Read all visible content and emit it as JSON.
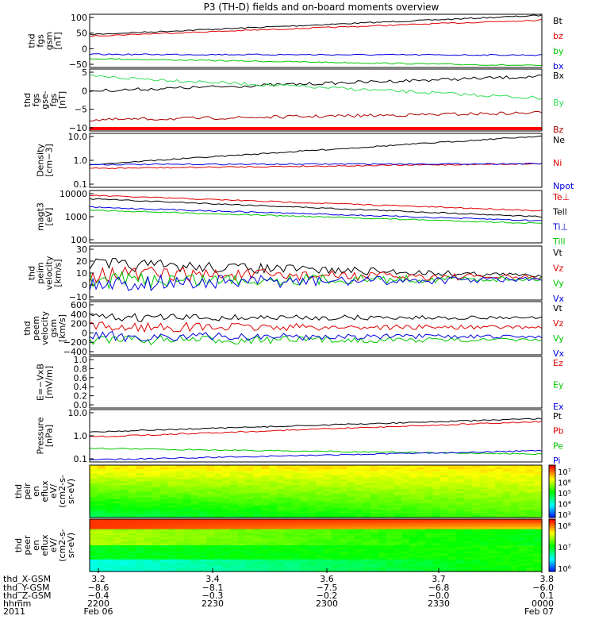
{
  "title": "P3 (TH-D) fields and on-board moments overview",
  "colors": {
    "black": "#000000",
    "red": "#e00000",
    "green": "#00c800",
    "blue": "#0000e0",
    "bright_red": "#ff0000",
    "lightgreen": "#33dd55",
    "darkred": "#aa0000"
  },
  "chart_data": [
    {
      "type": "line",
      "panel": "fgs_gsm",
      "ylabel": [
        "thd",
        "fgs",
        "gsm",
        "[nT]"
      ],
      "ylim": [
        -50,
        100
      ],
      "ticks": [
        "100",
        "50",
        "0",
        "−50"
      ],
      "series": [
        {
          "name": "Bt",
          "color": "black",
          "start": 43,
          "end": 97
        },
        {
          "name": "bz",
          "color": "red",
          "start": 39,
          "end": 84
        },
        {
          "name": "by",
          "color": "green",
          "start": -25,
          "end": -45
        },
        {
          "name": "bx",
          "color": "blue",
          "start": -13,
          "end": -15
        }
      ]
    },
    {
      "type": "line",
      "panel": "fgs_dsl",
      "ylabel": [
        "thd",
        "fgs",
        "gse-",
        "fgs",
        "[nT]"
      ],
      "ylim": [
        -12,
        5
      ],
      "ticks": [
        "5",
        "0",
        "−5",
        "−10"
      ],
      "series": [
        {
          "name": "Bx",
          "color": "black",
          "start": -1,
          "end": 3
        },
        {
          "name": "By",
          "color": "lightgreen",
          "start": 3,
          "end": -3
        },
        {
          "name": "Bz",
          "color": "darkred",
          "start": -9,
          "end": -7
        }
      ]
    },
    {
      "type": "line",
      "panel": "density",
      "ylabel": [
        "Density",
        "[cm−3]"
      ],
      "ylim": [
        0.1,
        10
      ],
      "log": true,
      "ticks": [
        "10.0",
        "1.0",
        "0.1"
      ],
      "series": [
        {
          "name": "Ne",
          "color": "black",
          "start": 0.7,
          "end": 8
        },
        {
          "name": "Ni",
          "color": "red",
          "start": 0.5,
          "end": 0.75
        },
        {
          "name": "Npot",
          "color": "blue",
          "start": 0.7,
          "end": 0.75
        }
      ]
    },
    {
      "type": "line",
      "panel": "temperature",
      "ylabel": [
        "magt3",
        "[eV]"
      ],
      "ylim": [
        100,
        10000
      ],
      "log": true,
      "ticks": [
        "10000",
        "1000",
        "100"
      ],
      "series": [
        {
          "name": "Te⊥",
          "color": "red",
          "start": 6500,
          "end": 1700
        },
        {
          "name": "Tell",
          "color": "black",
          "start": 4800,
          "end": 1000
        },
        {
          "name": "Ti⊥",
          "color": "blue",
          "start": 2300,
          "end": 700
        },
        {
          "name": "Till",
          "color": "green",
          "start": 1800,
          "end": 550
        }
      ]
    },
    {
      "type": "line",
      "panel": "peim_velocity",
      "ylabel": [
        "thd",
        "peim",
        "velocity",
        "[km/s]"
      ],
      "ylim": [
        -20,
        30
      ],
      "ticks": [
        "30",
        "20",
        "10",
        "0",
        "−10"
      ],
      "series": [
        {
          "name": "Vt",
          "color": "black"
        },
        {
          "name": "Vz",
          "color": "red"
        },
        {
          "name": "Vy",
          "color": "green"
        },
        {
          "name": "Vx",
          "color": "blue"
        }
      ]
    },
    {
      "type": "line",
      "panel": "peem_velocity",
      "ylabel": [
        "thd",
        "peem",
        "velocity",
        "gsm",
        "[km/s]"
      ],
      "ylim": [
        -400,
        600
      ],
      "ticks": [
        "600",
        "400",
        "200",
        "0",
        "−200",
        "−400"
      ],
      "series": [
        {
          "name": "Vt",
          "color": "black"
        },
        {
          "name": "Vz",
          "color": "red"
        },
        {
          "name": "Vy",
          "color": "green"
        },
        {
          "name": "Vx",
          "color": "blue"
        }
      ]
    },
    {
      "type": "line",
      "panel": "efield",
      "ylabel": [
        "E=−VxB",
        "[mV/m]"
      ],
      "ylim": [
        0,
        1
      ],
      "ticks": [
        "1.0",
        "0.8",
        "0.6",
        "0.4",
        "0.2",
        "0.0"
      ],
      "series": [
        {
          "name": "Ez",
          "color": "red"
        },
        {
          "name": "Ey",
          "color": "green"
        },
        {
          "name": "Ex",
          "color": "blue"
        }
      ]
    },
    {
      "type": "line",
      "panel": "pressure",
      "ylabel": [
        "Pressure",
        "[nPa]"
      ],
      "ylim": [
        0.1,
        10
      ],
      "log": true,
      "ticks": [
        "10.0",
        "1.0",
        "0.1"
      ],
      "series": [
        {
          "name": "Pt",
          "color": "black",
          "start": 1.4,
          "end": 4.5
        },
        {
          "name": "Pb",
          "color": "red",
          "start": 0.9,
          "end": 3.5
        },
        {
          "name": "Pe",
          "color": "green",
          "start": 0.33,
          "end": 0.2
        },
        {
          "name": "Pi",
          "color": "blue",
          "start": 0.12,
          "end": 0.27
        }
      ]
    },
    {
      "type": "heatmap",
      "panel": "peir_spec",
      "ylabel": [
        "thd",
        "peir",
        "en",
        "eflux",
        "eV/",
        "(cm2-s-",
        "sr-eV)"
      ],
      "ylim": [
        10,
        10000
      ],
      "ticks": [
        "10000",
        "1000",
        "100",
        "10"
      ],
      "colorbar_ticks": [
        "10⁷",
        "10⁶",
        "10⁵",
        "10⁴",
        "10³"
      ]
    },
    {
      "type": "heatmap",
      "panel": "peer_spec",
      "ylabel": [
        "thd",
        "peer",
        "en",
        "eflux",
        "eV/",
        "(cm2-s-",
        "sr-eV)"
      ],
      "ylim": [
        10,
        10000
      ],
      "ticks": [
        "10000",
        "1000",
        "100",
        "10"
      ],
      "colorbar_ticks": [
        "10⁸",
        "10⁷",
        "10⁶"
      ]
    }
  ],
  "xaxis": {
    "row_labels": [
      "thd_X-GSM",
      "thd_Y-GSM",
      "thd_Z-GSM",
      "hhmm",
      "2011"
    ],
    "columns": [
      [
        "3.2",
        "−8.6",
        "−0.4",
        "2200",
        "Feb 06"
      ],
      [
        "3.4",
        "−8.1",
        "−0.3",
        "2230",
        ""
      ],
      [
        "3.6",
        "−7.5",
        "−0.2",
        "2300",
        ""
      ],
      [
        "3.7",
        "−6.8",
        "−0.0",
        "2330",
        ""
      ],
      [
        "3.8",
        "−6.0",
        "0.1",
        "0000",
        "Feb 07"
      ]
    ]
  }
}
